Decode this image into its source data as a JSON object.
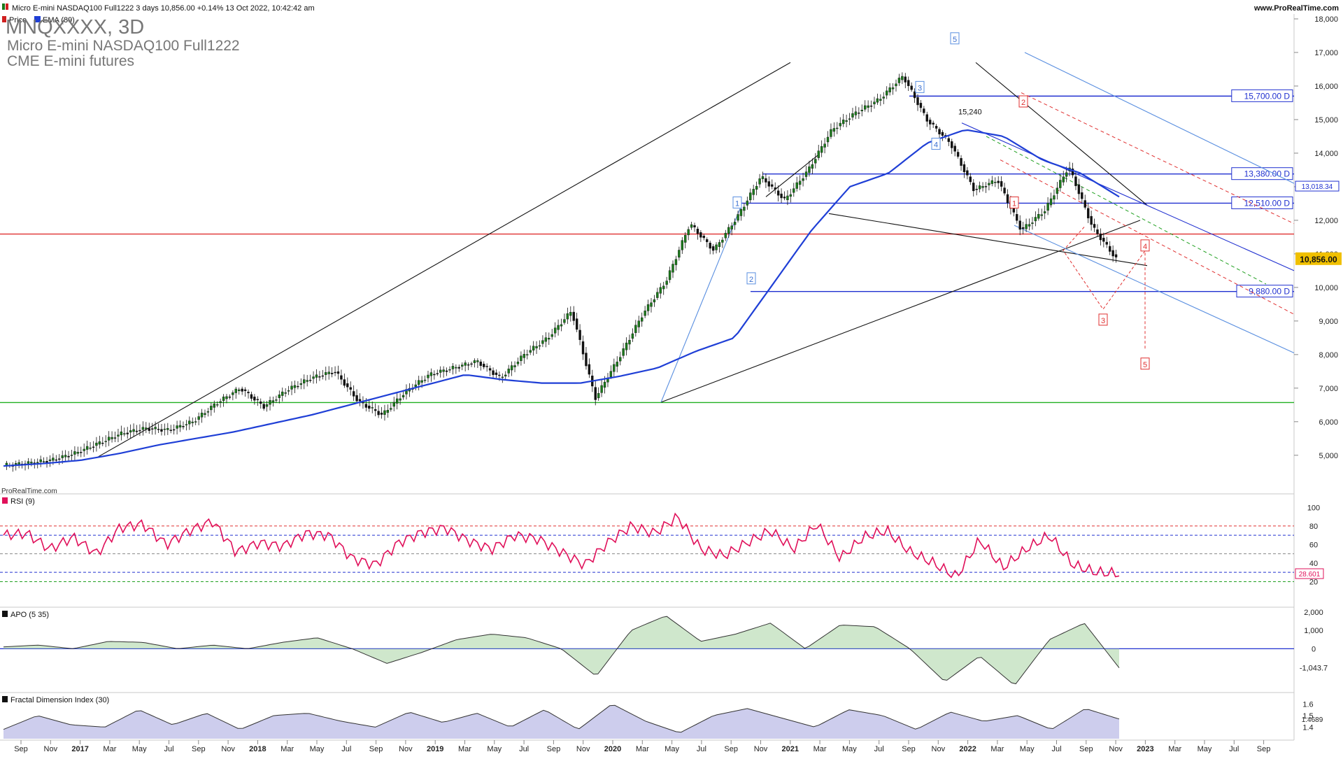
{
  "header": {
    "info": "Micro E-mini NASDAQ100 Full1222 3 days 10,856.00 +0.14% 13 Oct 2022, 10:42:42 am",
    "site": "www.ProRealTime.com",
    "symbol_title": "MNQXXXX, 3D",
    "instrument_name": "Micro E-mini NASDAQ100 Full1222",
    "exchange_name": "CME E-mini futures",
    "legend_price": "Price",
    "legend_ema": "EMA (89)",
    "watermark": "ProRealTime.com"
  },
  "colors": {
    "candle_up": "#1b7a1b",
    "candle_down": "#111111",
    "ema": "#1f3fd6",
    "rsi": "#e0105a",
    "apo_line": "#333333",
    "apo_pos_fill": "#a8d4a2",
    "apo_neg_fill": "#c9a3a3",
    "fdi_fill": "#b8b8e6",
    "red_level": "#e03030",
    "green_level": "#20b020",
    "blue_level": "#2030d0",
    "current_price_bg": "#f0c000"
  },
  "chart_data": [
    {
      "panel": "price",
      "type": "candlestick",
      "timeframe": "3D",
      "x_ticks": [
        "Sep",
        "Nov",
        "2017",
        "Mar",
        "May",
        "Jul",
        "Sep",
        "Nov",
        "2018",
        "Mar",
        "May",
        "Jul",
        "Sep",
        "Nov",
        "2019",
        "Mar",
        "May",
        "Jul",
        "Sep",
        "Nov",
        "2020",
        "Mar",
        "May",
        "Jul",
        "Sep",
        "Nov",
        "2021",
        "Mar",
        "May",
        "Jul",
        "Sep",
        "Nov",
        "2022",
        "Mar",
        "May",
        "Jul",
        "Sep",
        "Nov",
        "2023",
        "Mar",
        "May",
        "Jul",
        "Sep"
      ],
      "y_ticks": [
        "18,000",
        "17,000",
        "16,000",
        "15,000",
        "14,000",
        "13,000",
        "12,000",
        "11,000",
        "10,000",
        "9,000",
        "8,000",
        "7,000",
        "6,000",
        "5,000"
      ],
      "ylim": [
        4600,
        18000
      ],
      "series": [
        {
          "name": "Price",
          "approx_closes": [
            4700,
            4760,
            4850,
            5050,
            5350,
            5650,
            5800,
            5750,
            6000,
            6550,
            7000,
            6450,
            6950,
            7300,
            7500,
            6600,
            6200,
            6900,
            7400,
            7600,
            7800,
            7300,
            8000,
            8500,
            9300,
            6700,
            7900,
            9200,
            10200,
            11900,
            11100,
            12100,
            13300,
            12600,
            13500,
            14700,
            15200,
            15600,
            16300,
            15000,
            14300,
            12900,
            13200,
            11700,
            12300,
            13600,
            11800,
            10856
          ]
        },
        {
          "name": "EMA (89)",
          "approx_values": [
            4680,
            4750,
            4850,
            5050,
            5300,
            5500,
            5700,
            5950,
            6200,
            6500,
            6800,
            7100,
            7400,
            7250,
            7150,
            7150,
            7350,
            7600,
            8100,
            8500,
            10100,
            11700,
            13000,
            13400,
            14300,
            14700,
            14500,
            13800,
            13400,
            12700
          ]
        }
      ],
      "horizontal_levels": [
        {
          "label": "15,700.00 D",
          "value": 15700
        },
        {
          "label": "13,380.00 D",
          "value": 13380
        },
        {
          "label": "12,510.00 D",
          "value": 12510
        },
        {
          "label": "9,880.00 D",
          "value": 9880
        }
      ],
      "support_resistance": [
        {
          "name": "red-level",
          "value": 11590
        },
        {
          "name": "green-level",
          "value": 6570
        }
      ],
      "current_price_label": "10,856.00",
      "secondary_price_label": "13,018.34",
      "annotations": {
        "level_15240": "15,240",
        "wave_labels_blue": [
          "1",
          "2",
          "3",
          "4",
          "5"
        ],
        "wave_labels_red": [
          "1",
          "2",
          "3",
          "4",
          "5"
        ]
      }
    },
    {
      "panel": "rsi",
      "type": "line",
      "title": "RSI (9)",
      "y_ticks": [
        "100",
        "80",
        "60",
        "40",
        "20"
      ],
      "ylim": [
        0,
        110
      ],
      "last_value_label": "28.601",
      "approx_values": [
        70,
        72,
        55,
        68,
        50,
        78,
        82,
        60,
        75,
        85,
        52,
        62,
        58,
        72,
        70,
        45,
        38,
        62,
        73,
        78,
        64,
        55,
        70,
        66,
        52,
        38,
        62,
        80,
        72,
        90,
        55,
        48,
        62,
        75,
        55,
        82,
        45,
        68,
        75,
        52,
        40,
        25,
        65,
        35,
        55,
        70,
        38,
        30,
        28.6
      ]
    },
    {
      "panel": "apo",
      "type": "area",
      "title": "APO (5 35)",
      "y_ticks": [
        "2,000",
        "1,000",
        "0"
      ],
      "last_value_label": "-1,043.7",
      "ylim": [
        -2200,
        2000
      ],
      "approx_values": [
        100,
        200,
        0,
        400,
        350,
        0,
        200,
        0,
        350,
        600,
        0,
        -800,
        -200,
        500,
        800,
        600,
        0,
        -1500,
        1000,
        1800,
        400,
        800,
        1400,
        0,
        1300,
        1200,
        0,
        -1800,
        -400,
        -2000,
        500,
        1400,
        -1043.7
      ]
    },
    {
      "panel": "fdi",
      "type": "area",
      "title": "Fractal Dimension Index (30)",
      "y_ticks": [
        "1.6",
        "1.5",
        "1.4"
      ],
      "last_value_label": "1.4689",
      "ylim": [
        1.3,
        1.65
      ],
      "approx_values": [
        1.38,
        1.5,
        1.42,
        1.4,
        1.55,
        1.42,
        1.52,
        1.38,
        1.5,
        1.52,
        1.45,
        1.4,
        1.53,
        1.44,
        1.52,
        1.4,
        1.55,
        1.38,
        1.6,
        1.45,
        1.35,
        1.5,
        1.56,
        1.48,
        1.4,
        1.55,
        1.5,
        1.38,
        1.53,
        1.45,
        1.5,
        1.38,
        1.56,
        1.47
      ]
    }
  ]
}
